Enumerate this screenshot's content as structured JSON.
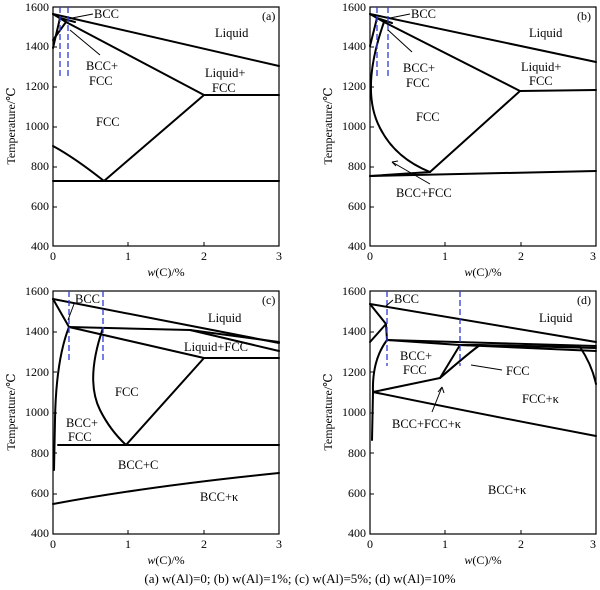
{
  "caption": "(a) w(Al)=0; (b) w(Al)=1%; (c) w(Al)=5%; (d) w(Al)=10%",
  "xlabel": "w(C)/%",
  "ylabel": "Temperature/℃",
  "panels": [
    {
      "id": "a",
      "label": "(a)",
      "xlim": [
        0,
        3
      ],
      "ylim": [
        400,
        1600
      ],
      "xticks": [
        "0",
        "1",
        "2",
        "3"
      ],
      "yticks": [
        "400",
        "600",
        "800",
        "1000",
        "1200",
        "1400",
        "1600"
      ],
      "regions": [
        {
          "text": "BCC"
        },
        {
          "text": "Liquid"
        },
        {
          "text": "BCC+"
        },
        {
          "text": "FCC"
        },
        {
          "text": "Liquid+"
        },
        {
          "text": "FCC"
        },
        {
          "text": "FCC"
        }
      ]
    },
    {
      "id": "b",
      "label": "(b)",
      "xlim": [
        0,
        3
      ],
      "ylim": [
        400,
        1600
      ],
      "xticks": [
        "0",
        "1",
        "2",
        "3"
      ],
      "yticks": [
        "400",
        "600",
        "800",
        "1000",
        "1200",
        "1400",
        "1600"
      ],
      "regions": [
        {
          "text": "BCC"
        },
        {
          "text": "Liquid"
        },
        {
          "text": "BCC+"
        },
        {
          "text": "FCC"
        },
        {
          "text": "Liquid+"
        },
        {
          "text": "FCC"
        },
        {
          "text": "FCC"
        },
        {
          "text": "BCC+FCC"
        }
      ]
    },
    {
      "id": "c",
      "label": "(c)",
      "xlim": [
        0,
        3
      ],
      "ylim": [
        400,
        1600
      ],
      "xticks": [
        "0",
        "1",
        "2",
        "3"
      ],
      "yticks": [
        "400",
        "600",
        "800",
        "1000",
        "1200",
        "1400",
        "1600"
      ],
      "regions": [
        {
          "text": "BCC"
        },
        {
          "text": "Liquid"
        },
        {
          "text": "Liquid+FCC"
        },
        {
          "text": "FCC"
        },
        {
          "text": "BCC+"
        },
        {
          "text": "FCC"
        },
        {
          "text": "BCC+C"
        },
        {
          "text": "BCC+κ"
        }
      ]
    },
    {
      "id": "d",
      "label": "(d)",
      "xlim": [
        0,
        3
      ],
      "ylim": [
        400,
        1600
      ],
      "xticks": [
        "0",
        "1",
        "2",
        "3"
      ],
      "yticks": [
        "400",
        "600",
        "800",
        "1000",
        "1200",
        "1400",
        "1600"
      ],
      "regions": [
        {
          "text": "BCC"
        },
        {
          "text": "Liquid"
        },
        {
          "text": "BCC+"
        },
        {
          "text": "FCC"
        },
        {
          "text": "FCC"
        },
        {
          "text": "FCC+κ"
        },
        {
          "text": "BCC+FCC+κ"
        },
        {
          "text": "BCC+κ"
        }
      ]
    }
  ]
}
